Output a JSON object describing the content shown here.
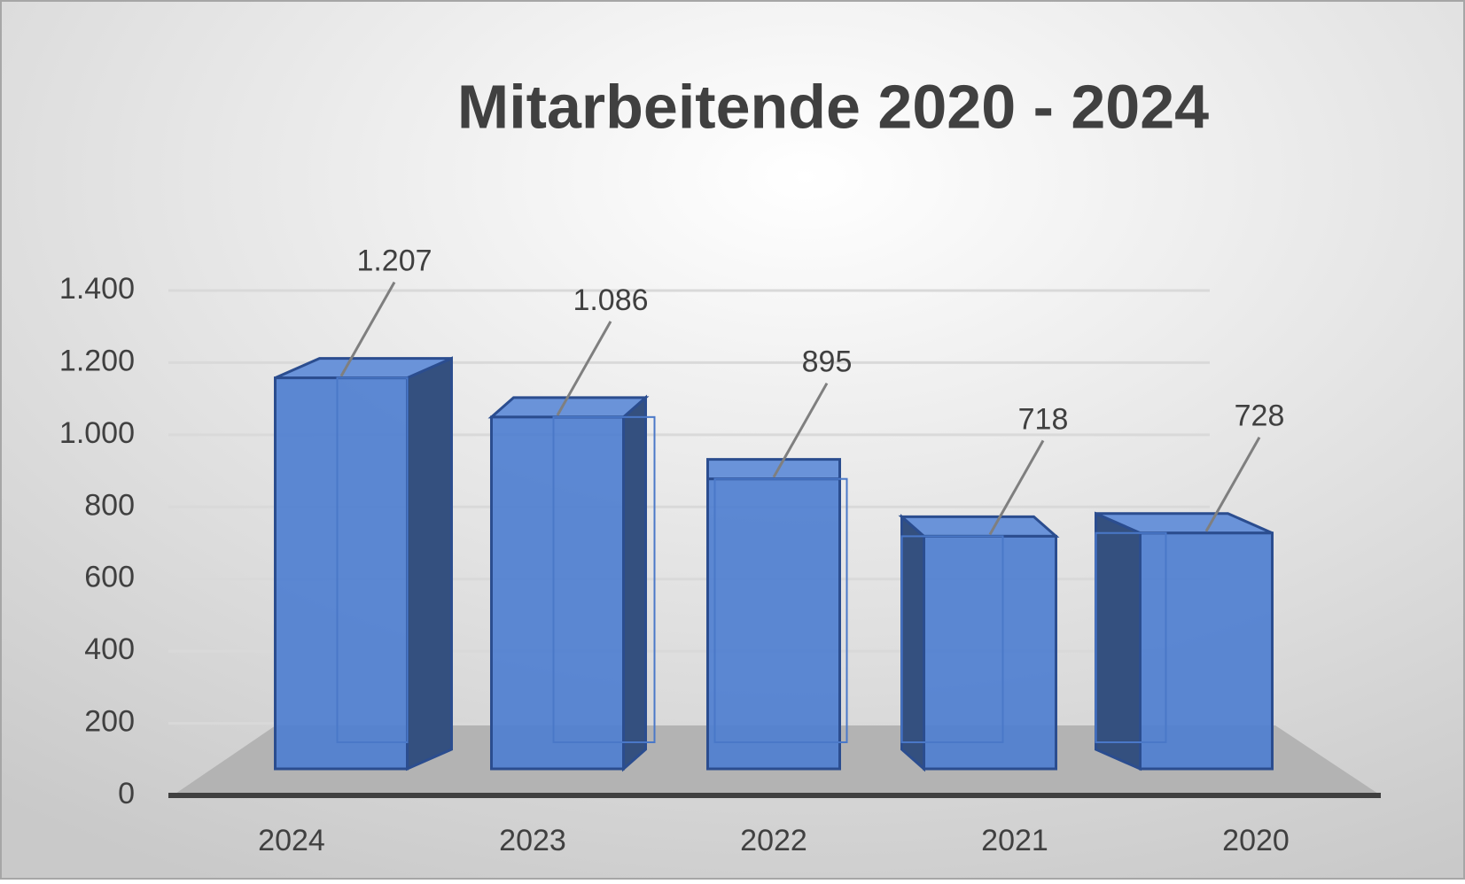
{
  "chart_data": {
    "type": "bar3d",
    "title": "Mitarbeitende 2020 - 2024",
    "categories": [
      "2024",
      "2023",
      "2022",
      "2021",
      "2020"
    ],
    "values": [
      1207,
      1086,
      895,
      718,
      728
    ],
    "value_labels": [
      "1.207",
      "1.086",
      "895",
      "718",
      "728"
    ],
    "color": "#4f7fd0",
    "ylim": [
      0,
      1400
    ],
    "yticks": [
      0,
      200,
      400,
      600,
      800,
      {
        "value": 1000,
        "label": "1.000"
      },
      {
        "value": 1200,
        "label": "1.200"
      },
      {
        "value": 1400,
        "label": "1.400"
      }
    ],
    "grid": true
  }
}
